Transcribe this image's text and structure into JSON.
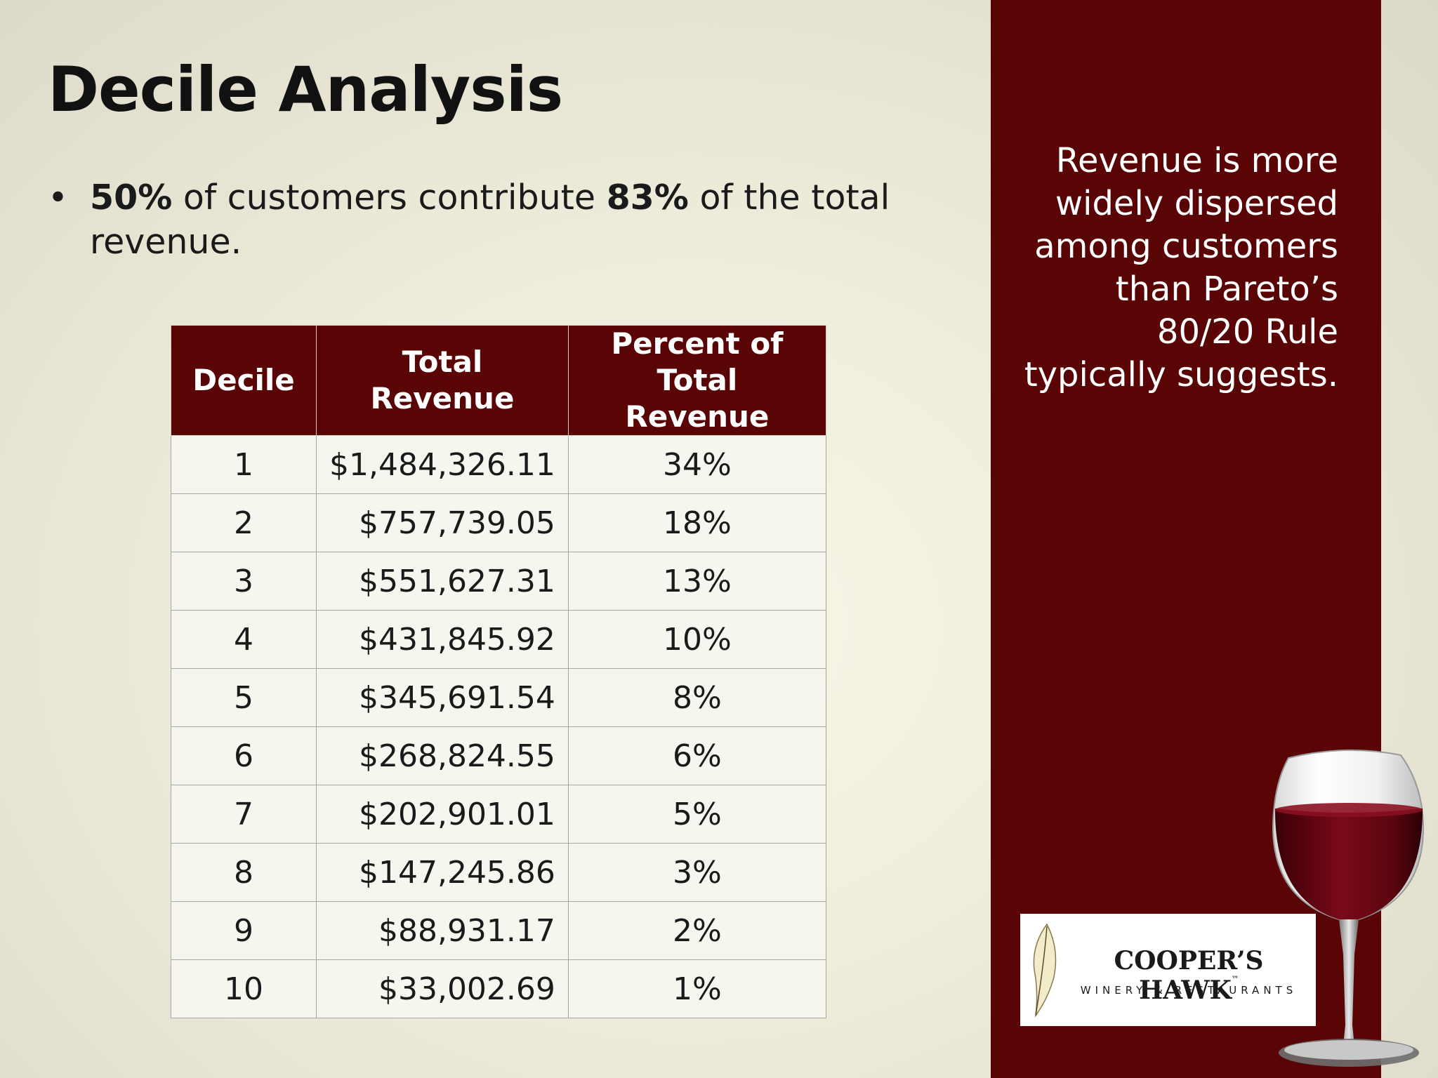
{
  "slide": {
    "title": "Decile Analysis",
    "bullet": {
      "marker": "•",
      "part1": "50%",
      "part2": " of customers contribute ",
      "part3": "83%",
      "part4": " of the total revenue."
    },
    "sidebar": {
      "lines": [
        "Revenue is more",
        "widely dispersed",
        "among customers",
        "than Pareto’s",
        "80/20 Rule",
        "typically suggests."
      ]
    },
    "table": {
      "headers": {
        "decile": "Decile",
        "revenue": "Total Revenue",
        "percent_line1": "Percent of",
        "percent_line2": "Total Revenue"
      },
      "rows": [
        {
          "decile": "1",
          "revenue": "$1,484,326.11",
          "percent": "34%"
        },
        {
          "decile": "2",
          "revenue": "$757,739.05",
          "percent": "18%"
        },
        {
          "decile": "3",
          "revenue": "$551,627.31",
          "percent": "13%"
        },
        {
          "decile": "4",
          "revenue": "$431,845.92",
          "percent": "10%"
        },
        {
          "decile": "5",
          "revenue": "$345,691.54",
          "percent": "8%"
        },
        {
          "decile": "6",
          "revenue": "$268,824.55",
          "percent": "6%"
        },
        {
          "decile": "7",
          "revenue": "$202,901.01",
          "percent": "5%"
        },
        {
          "decile": "8",
          "revenue": "$147,245.86",
          "percent": "3%"
        },
        {
          "decile": "9",
          "revenue": "$88,931.17",
          "percent": "2%"
        },
        {
          "decile": "10",
          "revenue": "$33,002.69",
          "percent": "1%"
        }
      ]
    },
    "logo": {
      "name": "COOPER’S HAWK",
      "trademark": "™",
      "subtitle": "WINERY & RESTAURANTS"
    },
    "colors": {
      "accent": "#5a0505",
      "background": "#efeddc",
      "text": "#111111"
    },
    "icons": {
      "logo_mark": "feather-icon",
      "decoration": "wine-glass-icon"
    }
  }
}
